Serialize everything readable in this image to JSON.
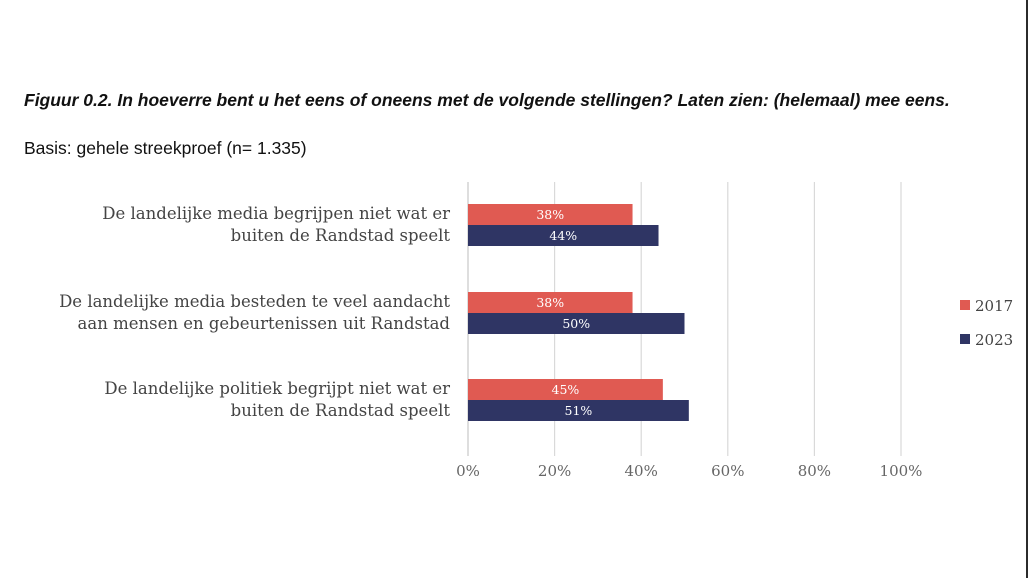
{
  "header": {
    "title": "Figuur 0.2. In hoeverre bent u het eens of oneens met de volgende stellingen? Laten zien: (helemaal) mee eens.",
    "subtitle": "Basis: gehele streekproef (n= 1.335)"
  },
  "chart_data": {
    "type": "bar",
    "orientation": "horizontal",
    "categories": [
      [
        "De landelijke media begrijpen niet wat er",
        "buiten de Randstad speelt"
      ],
      [
        "De landelijke media besteden te veel aandacht",
        "aan mensen en gebeurtenissen uit Randstad"
      ],
      [
        "De landelijke politiek begrijpt niet wat er",
        "buiten de Randstad speelt"
      ]
    ],
    "series": [
      {
        "name": "2017",
        "color": "#e05a52",
        "values": [
          38,
          38,
          45
        ],
        "labels": [
          "38%",
          "38%",
          "45%"
        ]
      },
      {
        "name": "2023",
        "color": "#2f3564",
        "values": [
          44,
          50,
          51
        ],
        "labels": [
          "44%",
          "50%",
          "51%"
        ]
      }
    ],
    "xlim": [
      0,
      100
    ],
    "xticks": [
      0,
      20,
      40,
      60,
      80,
      100
    ],
    "xtick_labels": [
      "0%",
      "20%",
      "40%",
      "60%",
      "80%",
      "100%"
    ],
    "grid": true,
    "legend_position": "right"
  }
}
